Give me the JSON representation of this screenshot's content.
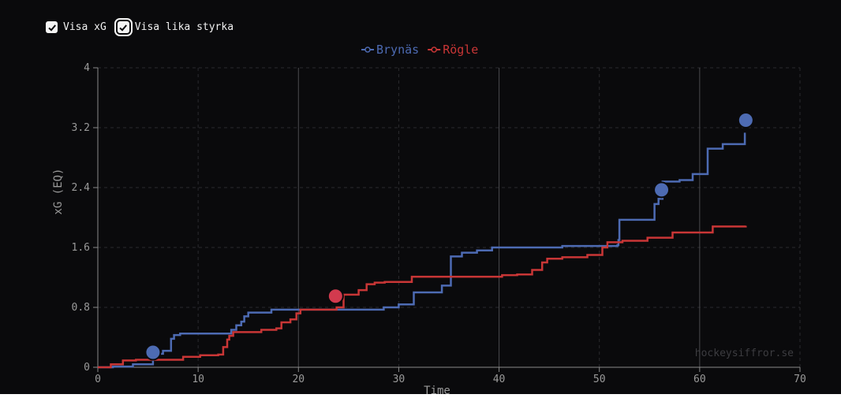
{
  "controls": {
    "show_xg": {
      "label": "Visa xG",
      "checked": true
    },
    "show_even": {
      "label": "Visa lika styrka",
      "checked": true
    }
  },
  "watermark": "hockeysiffror.se",
  "chart_data": {
    "type": "line",
    "title": "",
    "xlabel": "Time",
    "ylabel": "xG (EQ)",
    "xlim": [
      0,
      70
    ],
    "ylim": [
      0,
      4
    ],
    "x_ticks": [
      "0",
      "10",
      "20",
      "30",
      "40",
      "50",
      "60",
      "70"
    ],
    "y_ticks": [
      "0",
      "0.8",
      "1.6",
      "2.4",
      "3.2",
      "4"
    ],
    "x_tick_values": [
      0,
      10,
      20,
      30,
      40,
      50,
      60,
      70
    ],
    "y_tick_values": [
      0,
      0.8,
      1.6,
      2.4,
      3.2,
      4
    ],
    "period_lines": [
      20,
      40,
      60
    ],
    "grid": true,
    "legend": "top-center",
    "series": [
      {
        "name": "Brynäs",
        "color": "#4d6bb3",
        "steps": [
          [
            0,
            0
          ],
          [
            1.5,
            0.01
          ],
          [
            3.5,
            0.04
          ],
          [
            5.5,
            0.18
          ],
          [
            6.5,
            0.22
          ],
          [
            7.3,
            0.38
          ],
          [
            7.6,
            0.43
          ],
          [
            8.2,
            0.45
          ],
          [
            13.3,
            0.5
          ],
          [
            13.8,
            0.56
          ],
          [
            14.3,
            0.61
          ],
          [
            14.6,
            0.68
          ],
          [
            15,
            0.73
          ],
          [
            17.3,
            0.77
          ],
          [
            28.5,
            0.8
          ],
          [
            30,
            0.84
          ],
          [
            31.5,
            1.0
          ],
          [
            34.3,
            1.09
          ],
          [
            35.2,
            1.48
          ],
          [
            36.3,
            1.53
          ],
          [
            37.8,
            1.56
          ],
          [
            39.3,
            1.6
          ],
          [
            46.3,
            1.62
          ],
          [
            51.8,
            1.63
          ],
          [
            51.9,
            1.7
          ],
          [
            52,
            1.97
          ],
          [
            55.5,
            2.18
          ],
          [
            55.9,
            2.25
          ],
          [
            56.3,
            2.48
          ],
          [
            58,
            2.5
          ],
          [
            59.3,
            2.58
          ],
          [
            60.8,
            2.92
          ],
          [
            62.3,
            2.98
          ],
          [
            64.5,
            3.12
          ],
          [
            64.6,
            3.12
          ]
        ],
        "goals": [
          [
            5.5,
            0.2
          ],
          [
            56.2,
            2.37
          ],
          [
            64.6,
            3.3
          ]
        ]
      },
      {
        "name": "Rögle",
        "color": "#c93636",
        "steps": [
          [
            0,
            0
          ],
          [
            1.3,
            0.04
          ],
          [
            2.5,
            0.09
          ],
          [
            3.8,
            0.1
          ],
          [
            8.5,
            0.14
          ],
          [
            10.2,
            0.16
          ],
          [
            12,
            0.17
          ],
          [
            12.5,
            0.27
          ],
          [
            12.9,
            0.37
          ],
          [
            13.1,
            0.42
          ],
          [
            13.5,
            0.47
          ],
          [
            16.3,
            0.5
          ],
          [
            17.8,
            0.52
          ],
          [
            18.3,
            0.6
          ],
          [
            19.2,
            0.64
          ],
          [
            19.8,
            0.72
          ],
          [
            20.2,
            0.77
          ],
          [
            23.8,
            0.8
          ],
          [
            24.5,
            0.97
          ],
          [
            26,
            1.03
          ],
          [
            26.8,
            1.11
          ],
          [
            27.6,
            1.13
          ],
          [
            28.6,
            1.14
          ],
          [
            31.3,
            1.21
          ],
          [
            40.3,
            1.23
          ],
          [
            41.8,
            1.24
          ],
          [
            43.3,
            1.3
          ],
          [
            44.3,
            1.4
          ],
          [
            44.8,
            1.45
          ],
          [
            46.3,
            1.47
          ],
          [
            48.8,
            1.5
          ],
          [
            50.3,
            1.6
          ],
          [
            50.8,
            1.67
          ],
          [
            52.3,
            1.69
          ],
          [
            54.8,
            1.73
          ],
          [
            57.3,
            1.8
          ],
          [
            61.3,
            1.88
          ],
          [
            64.6,
            1.89
          ]
        ],
        "goals": [
          [
            23.7,
            0.95
          ]
        ]
      }
    ]
  }
}
